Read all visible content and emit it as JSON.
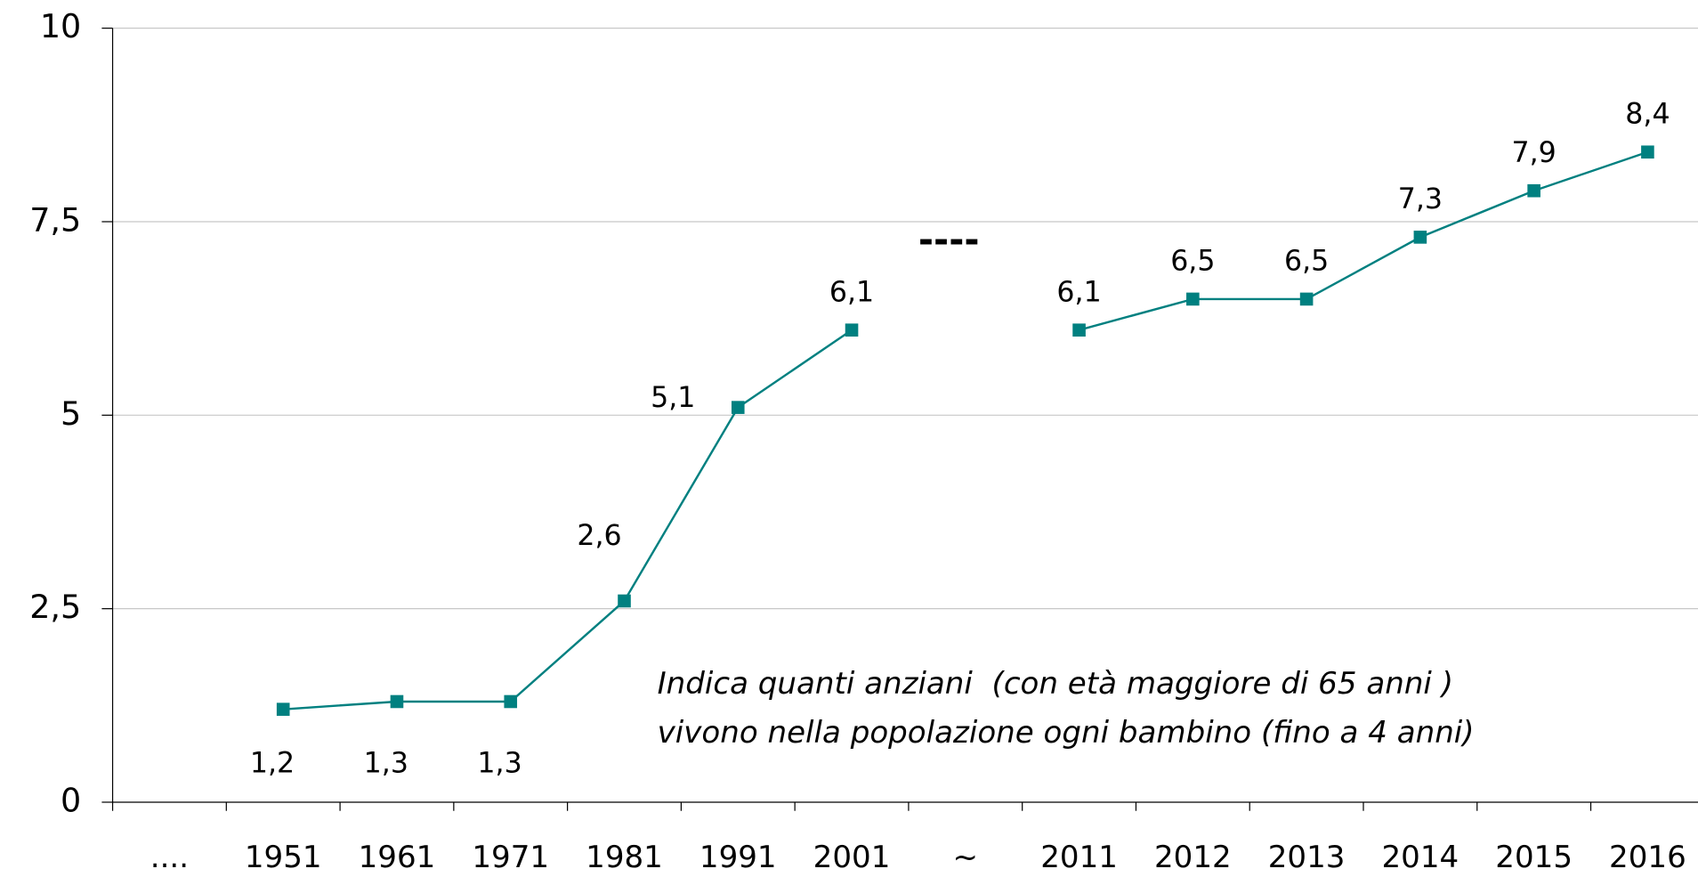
{
  "chart_data": {
    "type": "line",
    "categories": [
      "....",
      "1951",
      "1961",
      "1971",
      "1981",
      "1991",
      "2001",
      "~",
      "2011",
      "2012",
      "2013",
      "2014",
      "2015",
      "2016"
    ],
    "series": [
      {
        "color": "#008080",
        "values": [
          null,
          1.2,
          1.3,
          1.3,
          2.6,
          5.1,
          6.1,
          null,
          6.1,
          6.5,
          6.5,
          7.3,
          7.9,
          8.4
        ],
        "value_labels": [
          null,
          "1,2",
          "1,3",
          "1,3",
          "2,6",
          "5,1",
          "6,1",
          null,
          "6,1",
          "6,5",
          "6,5",
          "7,3",
          "7,9",
          "8,4"
        ]
      }
    ],
    "ylim": [
      0,
      10
    ],
    "yticks": [
      0,
      {
        "value": 2.5,
        "label": "2,5"
      },
      5,
      {
        "value": 7.5,
        "label": "7,5"
      },
      10
    ],
    "grid": true,
    "annotations": [
      "----",
      "Indica quanti anziani  (con età maggiore di 65 anni )",
      "vivono nella popolazione ogni bambino (fino a 4 anni)"
    ]
  }
}
